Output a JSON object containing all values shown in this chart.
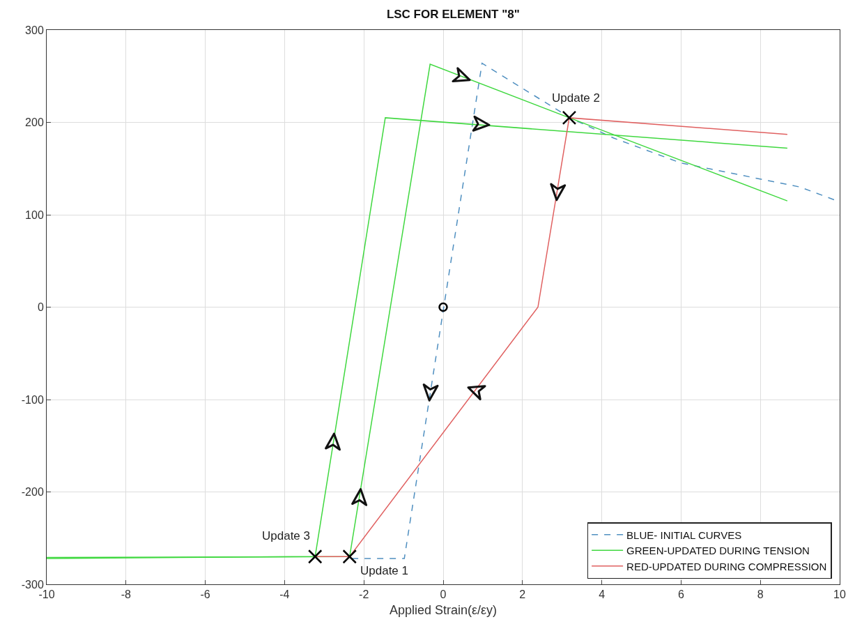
{
  "chart_data": {
    "type": "line",
    "title": "LSC FOR ELEMENT \"8\"",
    "xlabel": "Applied Strain(ε/εy)",
    "xlim": [
      -10,
      10
    ],
    "xticks": [
      -10,
      -8,
      -6,
      -4,
      -2,
      0,
      2,
      4,
      6,
      8,
      10
    ],
    "ylim": [
      -300,
      300
    ],
    "yticks": [
      -300,
      -200,
      -100,
      0,
      100,
      200,
      300
    ],
    "grid": true,
    "legend": "bottom right",
    "series": [
      {
        "name": "BLUE- INITIAL CURVES",
        "color": "#4f8fc0",
        "line_style": "dashed",
        "x": [
          -2.3,
          -0.98,
          0.98,
          3.2,
          4.3,
          6,
          9,
          10
        ],
        "values": [
          -272,
          -272,
          264,
          205,
          183,
          156,
          130,
          114
        ]
      },
      {
        "name": "GREEN-UPDATED DURING TENSION",
        "color": "#3fd83f",
        "x": [
          -10,
          -3.23,
          -1.46,
          8.68
        ],
        "values": [
          -272,
          -270,
          205,
          172
        ]
      },
      {
        "color": "#3fd83f",
        "x": [
          -10,
          -2.36,
          -0.33,
          3.18,
          8.68
        ],
        "values": [
          -271,
          -270,
          263,
          205,
          115
        ]
      },
      {
        "name": "RED-UPDATED DURING COMPRESSION",
        "color": "#e06060",
        "x": [
          -3.23,
          -2.36,
          2.39,
          3.18,
          8.68
        ],
        "values": [
          -270,
          -270,
          0,
          205,
          187
        ]
      },
      {
        "type": "scatter",
        "marker": "cross",
        "color": "#000000",
        "x": [
          -2.36,
          3.18,
          -3.23
        ],
        "values": [
          -270,
          205,
          -270
        ]
      },
      {
        "type": "scatter",
        "marker": "circle",
        "color": "#000000",
        "x": [
          0
        ],
        "values": [
          0
        ]
      }
    ],
    "annotations": [
      {
        "text": "Update 1",
        "x": -2.36,
        "y": -270
      },
      {
        "text": "Update 2",
        "x": 3.18,
        "y": 205
      },
      {
        "text": "Update 3",
        "x": -3.23,
        "y": -270
      }
    ]
  }
}
